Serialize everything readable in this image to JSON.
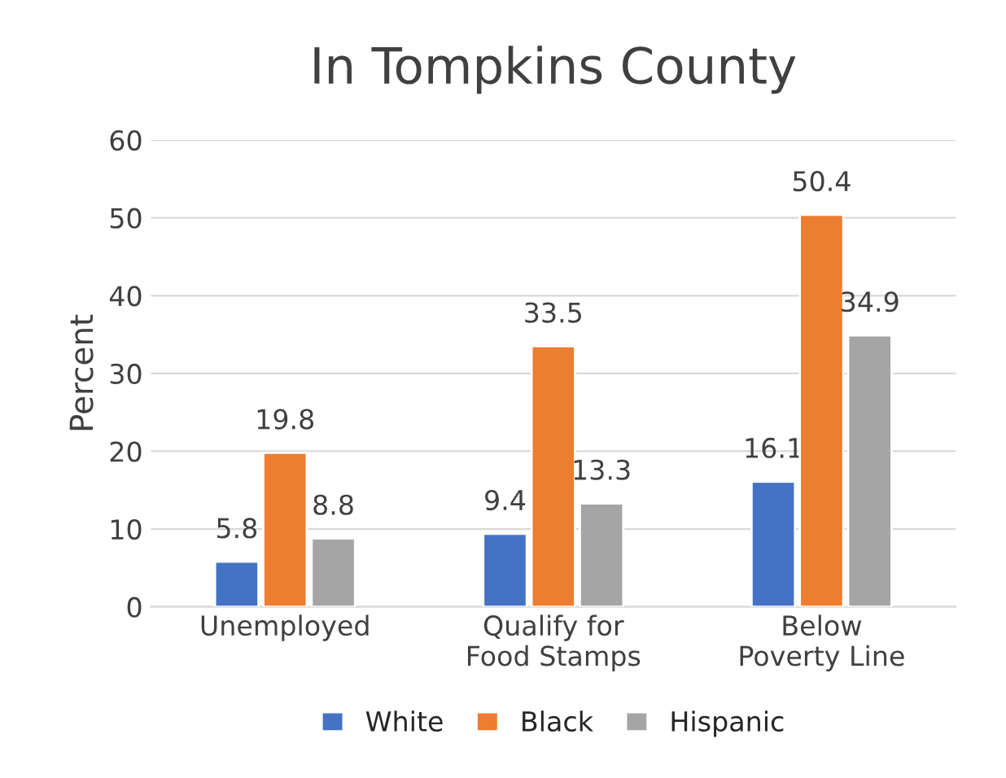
{
  "chart_data": {
    "type": "bar",
    "title": "In Tompkins County",
    "ylabel": "Percent",
    "categories": [
      "Unemployed",
      "Qualify for\nFood Stamps",
      "Below\nPoverty Line"
    ],
    "series": [
      {
        "name": "White",
        "color": "#4472c4",
        "values": [
          5.8,
          9.4,
          16.1
        ]
      },
      {
        "name": "Black",
        "color": "#ed7d31",
        "values": [
          19.8,
          33.5,
          50.4
        ]
      },
      {
        "name": "Hispanic",
        "color": "#a5a5a5",
        "values": [
          8.8,
          13.3,
          34.9
        ]
      }
    ],
    "ylim": [
      0,
      60
    ],
    "yticks": [
      0,
      10,
      20,
      30,
      40,
      50,
      60
    ],
    "grid": "y",
    "legend": "bottom",
    "data_labels": true
  }
}
